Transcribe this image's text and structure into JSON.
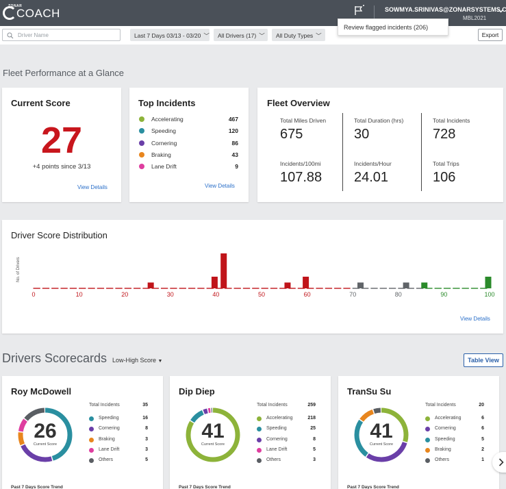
{
  "app": {
    "logo_small": "ZONAR",
    "logo_text": "COACH",
    "user_email": "SOWMYA.SRINIVAS@ZONARSYSTEMS.COM",
    "user_sub": "MBL2021",
    "flag_popover": "Review flagged incidents (206)"
  },
  "filters": {
    "search_placeholder": "Driver Name",
    "date_range": "Last 7 Days 03/13 - 03/20",
    "drivers": "All Drivers (17)",
    "duty_types": "All Duty Types",
    "export_label": "Export"
  },
  "glance": {
    "heading": "Fleet Performance at a Glance",
    "current_score": {
      "title": "Current Score",
      "value": "27",
      "delta": "+4 points since 3/13",
      "link": "View Details"
    },
    "top_incidents": {
      "title": "Top Incidents",
      "items": [
        {
          "label": "Accelerating",
          "value": "467",
          "color": "#8db33a"
        },
        {
          "label": "Speeding",
          "value": "120",
          "color": "#2a8fa0"
        },
        {
          "label": "Cornering",
          "value": "86",
          "color": "#6a3fa8"
        },
        {
          "label": "Braking",
          "value": "43",
          "color": "#e8861e"
        },
        {
          "label": "Lane Drift",
          "value": "9",
          "color": "#de3e9f"
        }
      ],
      "link": "View Details"
    },
    "fleet_overview": {
      "title": "Fleet Overview",
      "stats": [
        {
          "label": "Total Miles Driven",
          "value": "675"
        },
        {
          "label": "Total Duration (hrs)",
          "value": "30"
        },
        {
          "label": "Total Incidents",
          "value": "728"
        },
        {
          "label": "Incidents/100mi",
          "value": "107.88"
        },
        {
          "label": "Incidents/Hour",
          "value": "24.01"
        },
        {
          "label": "Total Trips",
          "value": "106"
        }
      ]
    }
  },
  "distribution": {
    "title": "Driver Score Distribution",
    "link": "View Details",
    "colors": {
      "low": "#c0141a",
      "mid": "#606468",
      "high": "#2a8a2a"
    },
    "chart_data": {
      "type": "bar",
      "ylabel": "No. of Drivers",
      "xlim": [
        0,
        100
      ],
      "xticks": [
        "0",
        "10",
        "20",
        "30",
        "40",
        "50",
        "60",
        "70",
        "80",
        "90",
        "100"
      ],
      "bars": [
        {
          "score": 26,
          "count": 1,
          "band": "low"
        },
        {
          "score": 40,
          "count": 2,
          "band": "low"
        },
        {
          "score": 42,
          "count": 6,
          "band": "low"
        },
        {
          "score": 56,
          "count": 1,
          "band": "low"
        },
        {
          "score": 60,
          "count": 2,
          "band": "low"
        },
        {
          "score": 72,
          "count": 1,
          "band": "mid"
        },
        {
          "score": 82,
          "count": 1,
          "band": "mid"
        },
        {
          "score": 86,
          "count": 1,
          "band": "high"
        },
        {
          "score": 100,
          "count": 2,
          "band": "high"
        }
      ]
    }
  },
  "scorecards": {
    "heading": "Drivers Scorecards",
    "sort_label": "Low-High Score",
    "table_view": "Table View",
    "total_incidents_label": "Total Incidents",
    "current_score_label": "Current Score",
    "trend_label": "Past 7 Days Score Trend",
    "cards": [
      {
        "name": "Roy McDowell",
        "score": "26",
        "total": "35",
        "items": [
          {
            "label": "Speeding",
            "value": "16",
            "color": "#2a8fa0"
          },
          {
            "label": "Cornering",
            "value": "8",
            "color": "#6a3fa8"
          },
          {
            "label": "Braking",
            "value": "3",
            "color": "#e8861e"
          },
          {
            "label": "Lane Drift",
            "value": "3",
            "color": "#de3e9f"
          },
          {
            "label": "Others",
            "value": "5",
            "color": "#5a5e63"
          }
        ]
      },
      {
        "name": "Dip Diep",
        "score": "41",
        "total": "259",
        "items": [
          {
            "label": "Accelerating",
            "value": "218",
            "color": "#8db33a"
          },
          {
            "label": "Speeding",
            "value": "25",
            "color": "#2a8fa0"
          },
          {
            "label": "Cornering",
            "value": "8",
            "color": "#6a3fa8"
          },
          {
            "label": "Lane Drift",
            "value": "5",
            "color": "#de3e9f"
          },
          {
            "label": "Others",
            "value": "3",
            "color": "#5a5e63"
          }
        ]
      },
      {
        "name": "TranSu Su",
        "score": "41",
        "total": "20",
        "items": [
          {
            "label": "Accelerating",
            "value": "6",
            "color": "#8db33a"
          },
          {
            "label": "Cornering",
            "value": "6",
            "color": "#6a3fa8"
          },
          {
            "label": "Speeding",
            "value": "5",
            "color": "#2a8fa0"
          },
          {
            "label": "Braking",
            "value": "2",
            "color": "#e8861e"
          },
          {
            "label": "Others",
            "value": "1",
            "color": "#5a5e63"
          }
        ]
      }
    ]
  }
}
